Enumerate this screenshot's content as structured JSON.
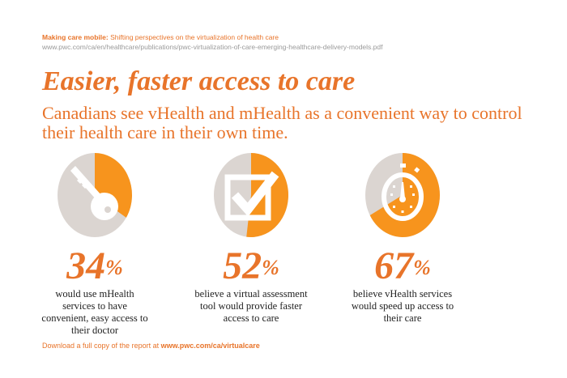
{
  "source": {
    "title": "Making care mobile:",
    "subtitle": "Shifting perspectives on the virtualization of health care",
    "url": "www.pwc.com/ca/en/healthcare/publications/pwc-virtualization-of-care-emerging-healthcare-delivery-models.pdf"
  },
  "heading": "Easier, faster access to care",
  "subheading": "Canadians see vHealth and mHealth as a convenient way to control their health care in their own time.",
  "colors": {
    "accent": "#f7941d",
    "grey": "#dbd5d1",
    "text_orange": "#e8742a"
  },
  "stats": [
    {
      "value": 34,
      "unit": "%",
      "icon": "key-icon",
      "desc": "would use mHealth services to have convenient, easy access to their doctor"
    },
    {
      "value": 52,
      "unit": "%",
      "icon": "checkbox-icon",
      "desc": "believe a virtual assessment tool would provide faster access to care"
    },
    {
      "value": 67,
      "unit": "%",
      "icon": "stopwatch-icon",
      "desc": "believe vHealth services would speed up access to their care"
    }
  ],
  "footer": {
    "text": "Download a full copy of the report at ",
    "link": "www.pwc.com/ca/virtualcare"
  }
}
